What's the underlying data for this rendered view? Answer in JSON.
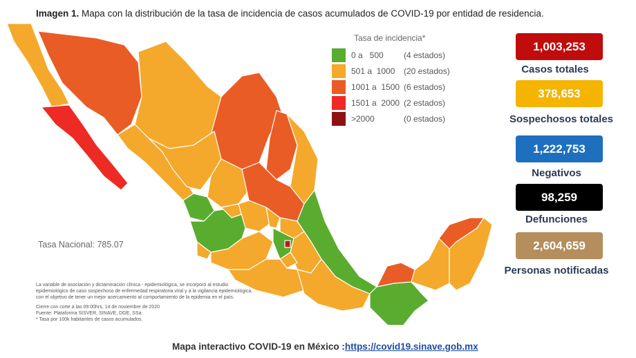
{
  "caption": {
    "bold": "Imagen 1.",
    "text": "Mapa con la distribución de la tasa de incidencia de casos acumulados de COVID-19 por entidad de residencia."
  },
  "legend": {
    "title": "Tasa de incidencia*",
    "items": [
      {
        "range": "0 a   500",
        "count": "(4 estados)",
        "color": "#5aac2f"
      },
      {
        "range": "501 a  1000",
        "count": "(20 estados)",
        "color": "#f4a92c"
      },
      {
        "range": "1001 a  1500",
        "count": "(6 estados)",
        "color": "#ea5c25"
      },
      {
        "range": "1501 a  2000",
        "count": "(2 estados)",
        "color": "#ee2a24"
      },
      {
        "range": ">2000",
        "count": "(0 estados)",
        "color": "#8e1010"
      }
    ]
  },
  "national_rate": "Tasa Nacional: 785.07",
  "notes": {
    "lines": [
      "La variable de asociación y dictaminación clínica - epidemiológica, se incorporó al estudio",
      "epidemiológico de caso sospechoso de enfermedad respiratoria viral y a la vigilancia epidemiológica,",
      "con el objetivo de tener un mejor acercamiento al comportamiento de la epidemia en el país."
    ],
    "lines2": [
      "Cierre con corte a las 09:00hrs, 14 de noviembre de 2020",
      "Fuente: Plataforma SISVER, SINAVE, DGE, SSa.",
      "* Tasa por 100k habitantes de casos acumulados."
    ]
  },
  "stats": [
    {
      "value": "1,003,253",
      "label": "Casos totales",
      "color": "#c00c0c"
    },
    {
      "value": "378,653",
      "label": "Sospechosos totales",
      "color": "#f4b400"
    },
    {
      "value": "1,222,753",
      "label": "Negativos",
      "color": "#1f6fbf"
    },
    {
      "value": "98,259",
      "label": "Defunciones",
      "color": "#000000"
    },
    {
      "value": "2,604,659",
      "label": "Personas notificadas",
      "color": "#b58e5e"
    }
  ],
  "footer": {
    "text": "Mapa interactivo COVID-19 en México :",
    "link": "https://covid19.sinave.gob.mx"
  },
  "map": {
    "title": "México",
    "color_orange": "#f4a92c",
    "color_darkorange": "#ea5c25",
    "color_red": "#ee2a24",
    "color_green": "#5aac2f",
    "color_darkred": "#c0161a"
  }
}
